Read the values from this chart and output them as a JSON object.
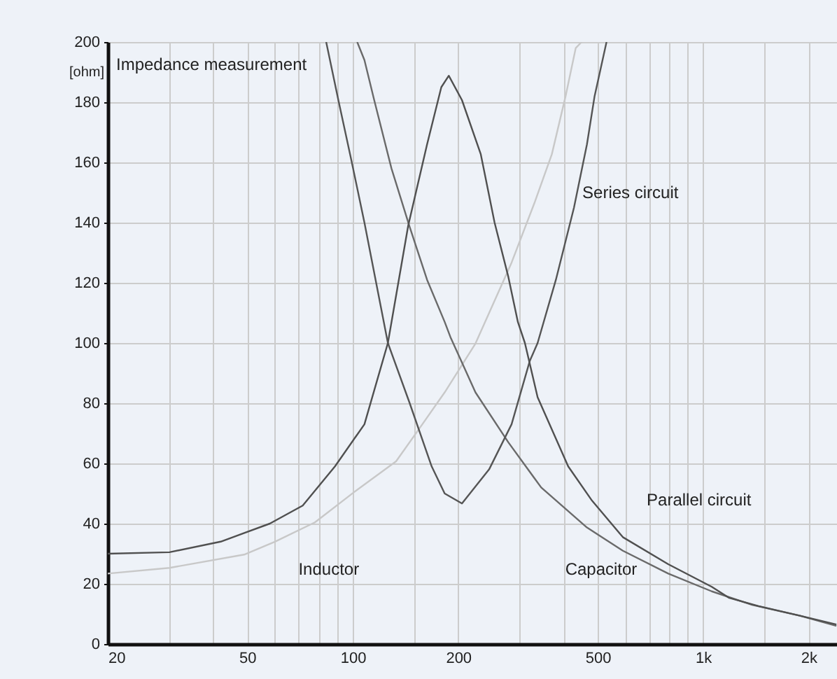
{
  "chart_data": {
    "type": "line",
    "title": "Impedance measurement",
    "ylabel": "[ohm]",
    "log": "x",
    "grid": true,
    "legend": false,
    "marker": "none",
    "line_style": "solid",
    "xlim": [
      20,
      2500
    ],
    "ylim": [
      0,
      200
    ],
    "xticks": [
      20,
      {
        "value": 30,
        "label": null
      },
      {
        "value": 40,
        "label": null
      },
      50,
      {
        "value": 60,
        "label": null
      },
      {
        "value": 70,
        "label": null
      },
      {
        "value": 80,
        "label": null
      },
      {
        "value": 90,
        "label": null
      },
      100,
      {
        "value": 150,
        "label": null
      },
      200,
      {
        "value": 300,
        "label": null
      },
      {
        "value": 400,
        "label": null
      },
      500,
      {
        "value": 600,
        "label": null
      },
      {
        "value": 700,
        "label": null
      },
      {
        "value": 800,
        "label": null
      },
      {
        "value": 900,
        "label": null
      },
      {
        "value": 1000,
        "label": "1k"
      },
      {
        "value": 1500,
        "label": null
      },
      {
        "value": 2000,
        "label": "2k"
      }
    ],
    "yticks": [
      0,
      20,
      40,
      60,
      80,
      100,
      120,
      140,
      160,
      180,
      200
    ],
    "series": [
      {
        "name": "Inductor",
        "color": "#c8c8c8",
        "x": [
          20,
          30,
          49,
          60,
          78,
          101,
          133,
          158,
          183,
          224,
          284,
          330,
          370,
          405,
          433,
          450
        ],
        "values": [
          23.4,
          25.3,
          29.7,
          34,
          40.4,
          50.5,
          60.7,
          73,
          83.6,
          99.8,
          126.7,
          146.5,
          162.7,
          182,
          198,
          200
        ]
      },
      {
        "name": "Capacitor",
        "color": "#6a6a6a",
        "x": [
          103,
          108,
          115,
          129,
          145,
          163,
          183,
          190,
          224,
          278,
          345,
          466,
          590,
          795,
          1058,
          1380,
          1890,
          2400
        ],
        "values": [
          200,
          194,
          181,
          158,
          139,
          121,
          107,
          102,
          83.6,
          67,
          52,
          38.7,
          31,
          23.4,
          17.5,
          13,
          9.4,
          6
        ]
      },
      {
        "name": "Series circuit",
        "color": "#555555",
        "x": [
          84,
          91,
          99,
          108,
          126,
          145,
          168,
          183,
          205,
          245,
          284,
          320,
          337,
          380,
          428,
          466,
          490,
          530
        ],
        "values": [
          200,
          180.7,
          161,
          140,
          100,
          80.4,
          59,
          50,
          46.7,
          58,
          73,
          94,
          100,
          121,
          145,
          166,
          182,
          200
        ]
      },
      {
        "name": "Parallel circuit",
        "color": "#505050",
        "x": [
          20,
          30,
          42,
          58,
          72,
          89,
          108,
          126,
          144,
          163,
          179,
          188,
          205,
          232,
          254,
          278,
          296,
          310,
          337,
          412,
          482,
          590,
          795,
          1058,
          1187,
          1440,
          1890,
          2400
        ],
        "values": [
          30,
          30.5,
          34,
          40,
          46,
          59,
          73,
          100,
          139,
          166,
          185,
          188.8,
          180.7,
          162.7,
          140,
          122,
          107,
          100,
          82,
          59,
          47.6,
          35.5,
          26.5,
          19,
          15.3,
          12.6,
          9.4,
          6.5
        ]
      }
    ]
  }
}
